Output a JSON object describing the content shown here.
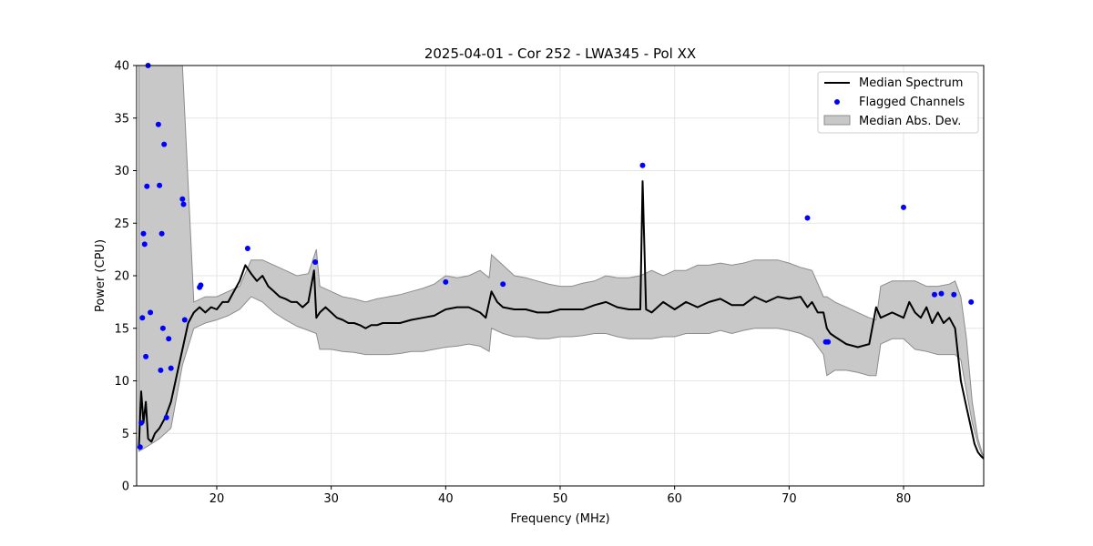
{
  "chart_data": {
    "type": "line",
    "title": "2025-04-01 - Cor 252 - LWA345 - Pol XX",
    "xlabel": "Frequency (MHz)",
    "ylabel": "Power (CPU)",
    "xlim": [
      13.0,
      87.0
    ],
    "ylim": [
      0,
      40
    ],
    "xticks": [
      20,
      30,
      40,
      50,
      60,
      70,
      80
    ],
    "yticks": [
      0,
      5,
      10,
      15,
      20,
      25,
      30,
      35,
      40
    ],
    "grid": true,
    "legend_position": "top-right",
    "legend": [
      "Median Spectrum",
      "Flagged Channels",
      "Median Abs. Dev."
    ],
    "colors": {
      "median": "#000000",
      "flagged": "#0000ff",
      "mad_fill": "#c8c8c8",
      "mad_edge": "#8c8c8c",
      "grid": "#e5e5e5"
    },
    "series": [
      {
        "name": "Median Spectrum",
        "x": [
          13.2,
          13.4,
          13.6,
          13.8,
          14.0,
          14.3,
          14.6,
          15.0,
          15.5,
          16.0,
          16.5,
          17.0,
          17.5,
          18.0,
          18.5,
          19.0,
          19.5,
          20.0,
          20.5,
          21.0,
          21.5,
          22.0,
          22.5,
          23.0,
          23.5,
          24.0,
          24.5,
          25.0,
          25.5,
          26.0,
          26.5,
          27.0,
          27.5,
          28.0,
          28.5,
          28.7,
          29.0,
          29.5,
          30.0,
          30.5,
          31.0,
          31.5,
          32.0,
          32.5,
          33.0,
          33.5,
          34.0,
          34.5,
          35.0,
          36.0,
          37.0,
          38.0,
          39.0,
          39.5,
          40.0,
          41.0,
          42.0,
          43.0,
          43.5,
          44.0,
          44.5,
          45.0,
          46.0,
          47.0,
          48.0,
          49.0,
          50.0,
          51.0,
          52.0,
          53.0,
          54.0,
          55.0,
          56.0,
          57.0,
          57.2,
          57.5,
          58.0,
          59.0,
          60.0,
          61.0,
          62.0,
          63.0,
          64.0,
          65.0,
          66.0,
          67.0,
          68.0,
          69.0,
          70.0,
          71.0,
          71.6,
          72.0,
          72.5,
          73.0,
          73.3,
          73.6,
          74.0,
          75.0,
          76.0,
          77.0,
          77.6,
          78.0,
          79.0,
          80.0,
          80.5,
          81.0,
          81.5,
          82.0,
          82.5,
          83.0,
          83.5,
          84.0,
          84.5,
          85.0,
          85.5,
          85.9,
          86.2,
          86.5,
          86.8,
          87.0
        ],
        "y": [
          3.8,
          9.0,
          6.0,
          8.0,
          4.5,
          4.2,
          5.0,
          5.5,
          6.5,
          8.0,
          10.5,
          13.0,
          15.5,
          16.5,
          17.0,
          16.5,
          17.0,
          16.8,
          17.5,
          17.5,
          18.5,
          19.5,
          21.0,
          20.2,
          19.5,
          20.0,
          19.0,
          18.5,
          18.0,
          17.8,
          17.5,
          17.5,
          17.0,
          17.5,
          20.5,
          16.0,
          16.5,
          17.0,
          16.5,
          16.0,
          15.8,
          15.5,
          15.5,
          15.3,
          15.0,
          15.3,
          15.3,
          15.5,
          15.5,
          15.5,
          15.8,
          16.0,
          16.2,
          16.5,
          16.8,
          17.0,
          17.0,
          16.5,
          16.0,
          18.5,
          17.5,
          17.0,
          16.8,
          16.8,
          16.5,
          16.5,
          16.8,
          16.8,
          16.8,
          17.2,
          17.5,
          17.0,
          16.8,
          16.8,
          29.0,
          16.8,
          16.5,
          17.5,
          16.8,
          17.5,
          17.0,
          17.5,
          17.8,
          17.2,
          17.2,
          18.0,
          17.5,
          18.0,
          17.8,
          18.0,
          17.0,
          17.5,
          16.5,
          16.5,
          15.0,
          14.5,
          14.2,
          13.5,
          13.2,
          13.5,
          17.0,
          16.0,
          16.5,
          16.0,
          17.5,
          16.5,
          16.0,
          17.0,
          15.5,
          16.5,
          15.5,
          16.0,
          15.0,
          10.0,
          7.5,
          5.5,
          4.0,
          3.2,
          2.8,
          2.6
        ]
      },
      {
        "name": "Median Abs. Dev.",
        "x": [
          13.2,
          14.0,
          15.0,
          16.0,
          17.0,
          18.0,
          19.0,
          20.0,
          21.0,
          22.0,
          23.0,
          24.0,
          25.0,
          26.0,
          27.0,
          28.0,
          28.7,
          29.0,
          30.0,
          31.0,
          32.0,
          33.0,
          34.0,
          35.0,
          36.0,
          37.0,
          38.0,
          39.0,
          40.0,
          41.0,
          42.0,
          43.0,
          43.8,
          44.0,
          45.0,
          46.0,
          47.0,
          48.0,
          49.0,
          50.0,
          51.0,
          52.0,
          53.0,
          54.0,
          55.0,
          56.0,
          57.0,
          58.0,
          59.0,
          60.0,
          61.0,
          62.0,
          63.0,
          64.0,
          65.0,
          66.0,
          67.0,
          68.0,
          69.0,
          70.0,
          71.0,
          72.0,
          73.0,
          73.3,
          74.0,
          75.0,
          76.0,
          77.0,
          77.6,
          78.0,
          79.0,
          80.0,
          81.0,
          82.0,
          83.0,
          84.0,
          84.5,
          85.0,
          85.5,
          86.0,
          86.5,
          87.0
        ],
        "lower": [
          3.3,
          3.8,
          4.5,
          5.5,
          11.5,
          15.0,
          15.5,
          15.8,
          16.2,
          16.8,
          18.0,
          17.5,
          16.5,
          15.8,
          15.2,
          14.8,
          14.5,
          13.0,
          13.0,
          12.8,
          12.7,
          12.5,
          12.5,
          12.5,
          12.6,
          12.8,
          12.8,
          13.0,
          13.2,
          13.3,
          13.5,
          13.3,
          12.8,
          15.0,
          14.5,
          14.2,
          14.2,
          14.0,
          14.0,
          14.2,
          14.2,
          14.3,
          14.5,
          14.5,
          14.2,
          14.0,
          14.0,
          14.0,
          14.2,
          14.2,
          14.5,
          14.5,
          14.5,
          14.8,
          14.5,
          14.8,
          15.0,
          15.0,
          15.0,
          14.8,
          14.5,
          14.0,
          12.5,
          10.5,
          11.0,
          11.0,
          10.8,
          10.5,
          10.5,
          13.5,
          14.0,
          14.0,
          13.0,
          12.8,
          12.5,
          12.5,
          12.5,
          12.0,
          9.0,
          6.0,
          4.0,
          2.5
        ],
        "upper": [
          40,
          40,
          40,
          40,
          40,
          17.5,
          18.0,
          18.0,
          18.5,
          19.0,
          21.5,
          21.5,
          21.0,
          20.5,
          20.0,
          20.2,
          22.5,
          19.0,
          18.5,
          18.0,
          17.8,
          17.5,
          17.8,
          18.0,
          18.2,
          18.5,
          18.8,
          19.2,
          20.0,
          19.8,
          20.0,
          20.5,
          19.8,
          22.0,
          21.0,
          20.0,
          19.8,
          19.5,
          19.2,
          19.0,
          19.0,
          19.3,
          19.5,
          20.0,
          19.8,
          19.8,
          20.0,
          20.5,
          20.0,
          20.5,
          20.5,
          21.0,
          21.0,
          21.2,
          21.0,
          21.2,
          21.5,
          21.5,
          21.5,
          21.2,
          20.8,
          20.5,
          18.0,
          18.0,
          17.5,
          17.0,
          16.5,
          16.0,
          15.8,
          19.0,
          19.5,
          19.5,
          19.5,
          19.0,
          19.0,
          19.2,
          19.5,
          18.0,
          14.0,
          8.0,
          4.5,
          2.7
        ]
      },
      {
        "name": "Flagged Channels",
        "x": [
          13.3,
          13.4,
          13.5,
          13.6,
          13.7,
          13.8,
          13.9,
          14.0,
          14.2,
          14.9,
          15.0,
          15.1,
          15.2,
          15.3,
          15.4,
          15.6,
          15.8,
          16.0,
          17.0,
          17.1,
          17.2,
          18.5,
          18.6,
          22.7,
          28.6,
          40.0,
          45.0,
          57.2,
          71.6,
          73.2,
          73.4,
          80.0,
          82.7,
          83.3,
          84.4,
          85.9
        ],
        "y": [
          3.7,
          6.0,
          16.0,
          24.0,
          23.0,
          12.3,
          28.5,
          40.0,
          16.5,
          34.4,
          28.6,
          11.0,
          24.0,
          15.0,
          32.5,
          6.5,
          14.0,
          11.2,
          27.3,
          26.8,
          15.8,
          18.9,
          19.1,
          22.6,
          21.3,
          19.4,
          19.2,
          30.5,
          25.5,
          13.7,
          13.7,
          26.5,
          18.2,
          18.3,
          18.2,
          17.5
        ]
      }
    ]
  }
}
